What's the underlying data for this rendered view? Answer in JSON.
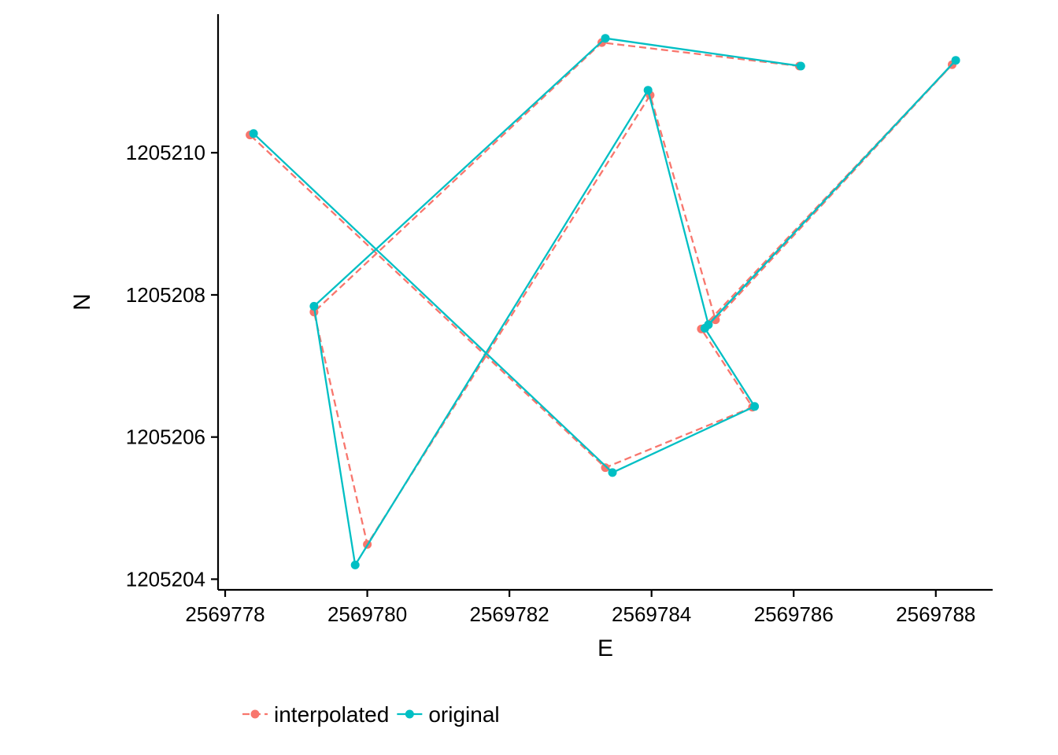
{
  "chart_data": {
    "type": "line",
    "title": "",
    "xlabel": "E",
    "ylabel": "N",
    "xlim": [
      2569777.9,
      2569788.8
    ],
    "ylim": [
      1205203.85,
      1205211.95
    ],
    "x_ticks": [
      2569778,
      2569780,
      2569782,
      2569784,
      2569786,
      2569788
    ],
    "x_tick_labels": [
      "2569778",
      "2569780",
      "2569782",
      "2569784",
      "2569786",
      "2569788"
    ],
    "y_ticks": [
      1205204,
      1205206,
      1205208,
      1205210
    ],
    "y_tick_labels": [
      "1205204",
      "1205206",
      "1205208",
      "1205210"
    ],
    "grid": false,
    "legend_position": "bottom",
    "series": [
      {
        "name": "interpolated",
        "color": "#F8766D",
        "line_style": "dashed",
        "points": [
          {
            "x": 2569786.08,
            "y": 1205211.22
          },
          {
            "x": 2569783.3,
            "y": 1205211.55
          },
          {
            "x": 2569779.25,
            "y": 1205207.76
          },
          {
            "x": 2569780.0,
            "y": 1205204.49
          },
          {
            "x": 2569783.98,
            "y": 1205210.81
          },
          {
            "x": 2569784.9,
            "y": 1205207.65
          },
          {
            "x": 2569788.23,
            "y": 1205211.24
          },
          {
            "x": 2569784.7,
            "y": 1205207.52
          },
          {
            "x": 2569785.42,
            "y": 1205206.42
          },
          {
            "x": 2569783.35,
            "y": 1205205.57
          },
          {
            "x": 2569778.35,
            "y": 1205210.25
          }
        ]
      },
      {
        "name": "original",
        "color": "#00BFC4",
        "line_style": "solid",
        "points": [
          {
            "x": 2569786.1,
            "y": 1205211.22
          },
          {
            "x": 2569783.35,
            "y": 1205211.61
          },
          {
            "x": 2569779.25,
            "y": 1205207.84
          },
          {
            "x": 2569779.83,
            "y": 1205204.2
          },
          {
            "x": 2569783.95,
            "y": 1205210.88
          },
          {
            "x": 2569784.8,
            "y": 1205207.58
          },
          {
            "x": 2569788.28,
            "y": 1205211.3
          },
          {
            "x": 2569784.75,
            "y": 1205207.53
          },
          {
            "x": 2569785.45,
            "y": 1205206.43
          },
          {
            "x": 2569783.45,
            "y": 1205205.5
          },
          {
            "x": 2569778.4,
            "y": 1205210.27
          }
        ]
      }
    ]
  }
}
